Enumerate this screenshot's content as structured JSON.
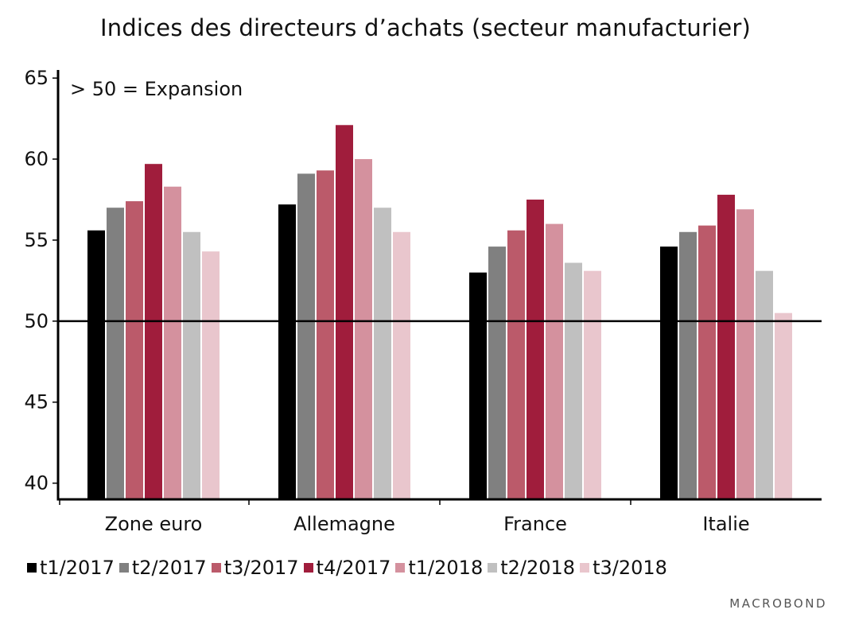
{
  "chart_data": {
    "type": "bar",
    "title": "Indices des directeurs d’achats (secteur manufacturier)",
    "annotation": "> 50 = Expansion",
    "categories": [
      "Zone euro",
      "Allemagne",
      "France",
      "Italie"
    ],
    "ylim": [
      39,
      65.5
    ],
    "yticks": [
      40,
      45,
      50,
      55,
      60,
      65
    ],
    "reference_line": 50,
    "grid": false,
    "legend_position": "bottom",
    "series": [
      {
        "name": "t1/2017",
        "color": "#000000",
        "values": [
          55.6,
          57.2,
          53.0,
          54.6
        ]
      },
      {
        "name": "t2/2017",
        "color": "#808080",
        "values": [
          57.0,
          59.1,
          54.6,
          55.5
        ]
      },
      {
        "name": "t3/2017",
        "color": "#bb5a6a",
        "values": [
          57.4,
          59.3,
          55.6,
          55.9
        ]
      },
      {
        "name": "t4/2017",
        "color": "#a01d3c",
        "values": [
          59.7,
          62.1,
          57.5,
          57.8
        ]
      },
      {
        "name": "t1/2018",
        "color": "#d4919e",
        "values": [
          58.3,
          60.0,
          56.0,
          56.9
        ]
      },
      {
        "name": "t2/2018",
        "color": "#c0c0c0",
        "values": [
          55.5,
          57.0,
          53.6,
          53.1
        ]
      },
      {
        "name": "t3/2018",
        "color": "#e9c6cd",
        "values": [
          54.3,
          55.5,
          53.1,
          50.5
        ]
      }
    ]
  },
  "watermark": "MACROBOND"
}
